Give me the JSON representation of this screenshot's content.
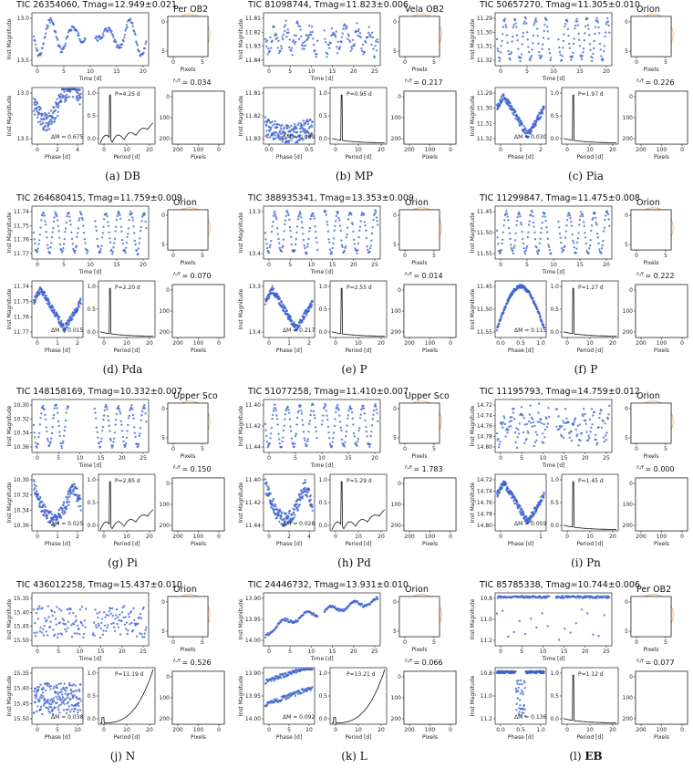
{
  "labels": {
    "ylab": "Inst Magnitude",
    "time": "Time [d]",
    "phase": "Phase [d]",
    "period": "Period [d]",
    "pixels": "Pixels",
    "dm_prefix": "ΔM = ",
    "p_prefix": "P=",
    "p_suffix": " d",
    "ratio_prefix": "= "
  },
  "chart_data": [
    {
      "id": "a",
      "tic": "TIC 26354060, Tmag=12.949±0.021",
      "assoc": "Per OB2",
      "caption": "(a) DB",
      "caption_bold": false,
      "lc": {
        "yticks": [
          "13.0",
          "13.5"
        ],
        "xticks": [
          "0",
          "5",
          "10",
          "15",
          "20"
        ],
        "xlim": [
          0,
          24
        ],
        "gap": [
          11,
          13
        ],
        "type": "db"
      },
      "ph": {
        "yticks": [
          "13.0",
          "13.5"
        ],
        "xticks": [
          "0",
          "2",
          "4"
        ],
        "xlim": [
          0,
          4.3
        ],
        "type": "db"
      },
      "period": "4.25",
      "dm": "0.675",
      "ratio": "0.034",
      "ptype": "multi",
      "pyt": [
        "1.0",
        "0.5",
        "0.0"
      ],
      "pxt": [
        "0",
        "10",
        "20"
      ],
      "pix": {
        "yt": [
          "0",
          "5"
        ],
        "xt": [
          "0",
          "5"
        ]
      },
      "sky": {
        "yt": [
          "0",
          "100",
          "200"
        ],
        "xt": [
          "200",
          "100",
          "0"
        ],
        "stars": 5
      }
    },
    {
      "id": "b",
      "tic": "TIC 81098744, Tmag=11.823±0.006",
      "assoc": "Vela OB2",
      "caption": "(b) MP",
      "caption_bold": false,
      "lc": {
        "yticks": [
          "11.81",
          "11.82",
          "11.83",
          "11.84"
        ],
        "xticks": [
          "0",
          "5",
          "10",
          "15",
          "20",
          "25"
        ],
        "xlim": [
          0,
          26
        ],
        "gap": [
          12,
          13.5
        ],
        "type": "mp"
      },
      "ph": {
        "yticks": [
          "11.81",
          "11.82",
          "11.83"
        ],
        "xticks": [
          "0.0",
          "0.5"
        ],
        "xlim": [
          0,
          0.95
        ],
        "type": "mp"
      },
      "period": "0.95",
      "dm": "0.009",
      "ratio": "0.217",
      "ptype": "peak",
      "pyt": [
        "1.0",
        "0.5",
        "0.0"
      ],
      "pxt": [
        "0",
        "10",
        "20"
      ],
      "pix": {
        "yt": [
          "0",
          "5"
        ],
        "xt": [
          "0",
          "5"
        ]
      },
      "sky": {
        "yt": [
          "0",
          "100",
          "200"
        ],
        "xt": [
          "200",
          "100",
          "0"
        ],
        "stars": 6
      }
    },
    {
      "id": "c",
      "tic": "TIC 50657270, Tmag=11.305±0.010",
      "assoc": "Orion",
      "caption": "(c) Pia",
      "caption_bold": false,
      "lc": {
        "yticks": [
          "11.29",
          "11.30",
          "11.31",
          "11.32"
        ],
        "xticks": [
          "0",
          "5",
          "10",
          "15",
          "20"
        ],
        "xlim": [
          0,
          24
        ],
        "gap": [
          11.5,
          13
        ],
        "type": "saw"
      },
      "ph": {
        "yticks": [
          "11.29",
          "11.30",
          "11.31",
          "11.32"
        ],
        "xticks": [
          "0",
          "1",
          "2"
        ],
        "xlim": [
          0,
          2
        ],
        "type": "v"
      },
      "period": "1.97",
      "dm": "0.030",
      "ratio": "0.226",
      "ptype": "peak",
      "pyt": [
        "1.0",
        "0.5",
        "0.0"
      ],
      "pxt": [
        "0",
        "10",
        "20"
      ],
      "pix": {
        "yt": [
          "0",
          "5"
        ],
        "xt": [
          "0",
          "5"
        ]
      },
      "sky": {
        "yt": [
          "0",
          "100",
          "200"
        ],
        "xt": [
          "200",
          "100",
          "0"
        ],
        "stars": 4
      }
    },
    {
      "id": "d",
      "tic": "TIC 264680415, Tmag=11.759±0.009",
      "assoc": "Orion",
      "caption": "(d) Pda",
      "caption_bold": false,
      "lc": {
        "yticks": [
          "11.74",
          "11.75",
          "11.76",
          "11.77"
        ],
        "xticks": [
          "0",
          "5",
          "10",
          "15",
          "20"
        ],
        "xlim": [
          0,
          24
        ],
        "gap": [
          11.5,
          13
        ],
        "type": "sine"
      },
      "ph": {
        "yticks": [
          "11.74",
          "11.75",
          "11.76",
          "11.77"
        ],
        "xticks": [
          "0",
          "1",
          "2"
        ],
        "xlim": [
          0,
          2.2
        ],
        "type": "v"
      },
      "period": "2.20",
      "dm": "0.015",
      "ratio": "0.070",
      "ptype": "peak",
      "pyt": [
        "1.0",
        "0.5",
        "0.0"
      ],
      "pxt": [
        "0",
        "10",
        "20"
      ],
      "pix": {
        "yt": [
          "0",
          "5"
        ],
        "xt": [
          "0",
          "5"
        ]
      },
      "sky": {
        "yt": [
          "0",
          "100",
          "200"
        ],
        "xt": [
          "200",
          "100",
          "0"
        ],
        "stars": 3
      }
    },
    {
      "id": "e",
      "tic": "TIC 388935341, Tmag=13.353±0.009",
      "assoc": "Orion",
      "caption": "(e) P",
      "caption_bold": false,
      "lc": {
        "yticks": [
          "13.3",
          "13.4"
        ],
        "xticks": [
          "0",
          "5",
          "10",
          "15",
          "20",
          "25"
        ],
        "xlim": [
          0,
          26
        ],
        "gap": [
          12,
          13.5
        ],
        "type": "sine"
      },
      "ph": {
        "yticks": [
          "13.3",
          "13.4"
        ],
        "xticks": [
          "0",
          "1",
          "2"
        ],
        "xlim": [
          0,
          2.55
        ],
        "type": "v"
      },
      "period": "2.55",
      "dm": "0.217",
      "ratio": "0.014",
      "ptype": "peak",
      "pyt": [
        "1.0",
        "0.5",
        "0.0"
      ],
      "pxt": [
        "0",
        "10",
        "20"
      ],
      "pix": {
        "yt": [
          "0",
          "5"
        ],
        "xt": [
          "0",
          "5"
        ]
      },
      "sky": {
        "yt": [
          "0",
          "100",
          "200"
        ],
        "xt": [
          "200",
          "100",
          "0"
        ],
        "stars": 3
      }
    },
    {
      "id": "f",
      "tic": "TIC 11299847, Tmag=11.475±0.008",
      "assoc": "Orion",
      "caption": "(f) P",
      "caption_bold": false,
      "lc": {
        "yticks": [
          "11.45",
          "11.50",
          "11.55"
        ],
        "xticks": [
          "0",
          "5",
          "10",
          "15",
          "20"
        ],
        "xlim": [
          0,
          24
        ],
        "gap": [
          11.5,
          13
        ],
        "type": "sine"
      },
      "ph": {
        "yticks": [
          "11.45",
          "11.50",
          "11.55"
        ],
        "xticks": [
          "0.0",
          "0.5",
          "1.0"
        ],
        "xlim": [
          0,
          1.27
        ],
        "type": "arc"
      },
      "period": "1.27",
      "dm": "0.115",
      "ratio": "0.222",
      "ptype": "peak",
      "pyt": [
        "1.0",
        "0.5",
        "0.0"
      ],
      "pxt": [
        "0",
        "10",
        "20"
      ],
      "pix": {
        "yt": [
          "0",
          "5"
        ],
        "xt": [
          "0",
          "5"
        ]
      },
      "sky": {
        "yt": [
          "0",
          "100",
          "200"
        ],
        "xt": [
          "200",
          "100",
          "0"
        ],
        "stars": 6
      }
    },
    {
      "id": "g",
      "tic": "TIC 148158169, Tmag=10.332±0.007",
      "assoc": "Upper Sco",
      "caption": "(g) Pi",
      "caption_bold": false,
      "lc": {
        "yticks": [
          "10.30",
          "10.32",
          "10.34",
          "10.36"
        ],
        "xticks": [
          "0",
          "5",
          "10",
          "15",
          "20",
          "25"
        ],
        "xlim": [
          0,
          26
        ],
        "gap": [
          8,
          14
        ],
        "type": "sine"
      },
      "ph": {
        "yticks": [
          "10.30",
          "10.32",
          "10.34",
          "10.36"
        ],
        "xticks": [
          "0",
          "1",
          "2"
        ],
        "xlim": [
          0,
          2.85
        ],
        "type": "band"
      },
      "period": "2.85",
      "dm": "0.025",
      "ratio": "0.150",
      "ptype": "multi",
      "pyt": [
        "1.0",
        "0.5",
        "0.0"
      ],
      "pxt": [
        "0",
        "10",
        "20"
      ],
      "pix": {
        "yt": [
          "0",
          "5"
        ],
        "xt": [
          "0",
          "5"
        ]
      },
      "sky": {
        "yt": [
          "0",
          "100",
          "200"
        ],
        "xt": [
          "200",
          "100",
          "0"
        ],
        "stars": 5
      }
    },
    {
      "id": "h",
      "tic": "TIC 51077258, Tmag=11.410±0.007",
      "assoc": "Upper Sco",
      "caption": "(h) Pd",
      "caption_bold": false,
      "lc": {
        "yticks": [
          "11.40",
          "11.42",
          "11.44"
        ],
        "xticks": [
          "0",
          "5",
          "10",
          "15",
          "20"
        ],
        "xlim": [
          0,
          23
        ],
        "gap": [
          10.5,
          11.5
        ],
        "type": "sine"
      },
      "ph": {
        "yticks": [
          "11.40",
          "11.42",
          "11.44"
        ],
        "xticks": [
          "0",
          "2",
          "4"
        ],
        "xlim": [
          0,
          5.3
        ],
        "type": "band"
      },
      "period": "5.29",
      "dm": "0.028",
      "ratio": "1.783",
      "ptype": "multi",
      "pyt": [
        "1.0",
        "0.5",
        "0.0"
      ],
      "pxt": [
        "0",
        "10",
        "20"
      ],
      "pix": {
        "yt": [
          "0",
          "5"
        ],
        "xt": [
          "0",
          "5"
        ]
      },
      "sky": {
        "yt": [
          "0",
          "100",
          "200"
        ],
        "xt": [
          "200",
          "100",
          "0"
        ],
        "stars": 40
      }
    },
    {
      "id": "i",
      "tic": "TIC 11195793, Tmag=14.759±0.012",
      "assoc": "Orion",
      "caption": "(i) Pn",
      "caption_bold": false,
      "lc": {
        "yticks": [
          "14.72",
          "14.74",
          "14.76",
          "14.78",
          "14.80"
        ],
        "xticks": [
          "0",
          "5",
          "10",
          "15",
          "20",
          "25"
        ],
        "xlim": [
          0,
          26
        ],
        "gap": [
          12,
          13.5
        ],
        "type": "noisy"
      },
      "ph": {
        "yticks": [
          "14.72",
          "14.74",
          "14.76",
          "14.78",
          "14.80"
        ],
        "xticks": [
          "0",
          "1"
        ],
        "xlim": [
          0,
          1.45
        ],
        "type": "v"
      },
      "period": "1.45",
      "dm": "0.059",
      "ratio": "0.000",
      "ptype": "peak",
      "pyt": [
        "1.0",
        "0.5",
        "0.0"
      ],
      "pxt": [
        "0",
        "10",
        "20"
      ],
      "pix": {
        "yt": [
          "0",
          "5"
        ],
        "xt": [
          "0",
          "5"
        ]
      },
      "sky": {
        "yt": [
          "0",
          "100",
          "200"
        ],
        "xt": [
          "200",
          "100",
          "0"
        ],
        "stars": 3
      }
    },
    {
      "id": "j",
      "tic": "TIC 436012258, Tmag=15.437±0.010",
      "assoc": "Orion",
      "caption": "(j) N",
      "caption_bold": false,
      "lc": {
        "yticks": [
          "15.35",
          "15.40",
          "15.45",
          "15.50"
        ],
        "xticks": [
          "0",
          "5",
          "10",
          "15",
          "20",
          "25"
        ],
        "xlim": [
          0,
          26
        ],
        "gap": [
          12,
          13.5
        ],
        "type": "noise"
      },
      "ph": {
        "yticks": [
          "15.35",
          "15.40",
          "15.45",
          "15.50"
        ],
        "xticks": [
          "0",
          "5",
          "10"
        ],
        "xlim": [
          0,
          11.2
        ],
        "type": "noise"
      },
      "period": "11.19",
      "dm": "0.038",
      "ratio": "0.526",
      "ptype": "rise",
      "pyt": [
        "1.0",
        "0.5",
        "0.0"
      ],
      "pxt": [
        "0",
        "10",
        "20"
      ],
      "pix": {
        "yt": [
          "0",
          "5"
        ],
        "xt": [
          "0",
          "5"
        ]
      },
      "sky": {
        "yt": [
          "0",
          "100",
          "200"
        ],
        "xt": [
          "200",
          "100",
          "0"
        ],
        "stars": 2
      }
    },
    {
      "id": "k",
      "tic": "TIC 24446732, Tmag=13.931±0.010",
      "assoc": "Orion",
      "caption": "(k) L",
      "caption_bold": false,
      "lc": {
        "yticks": [
          "13.90",
          "13.95",
          "14.00"
        ],
        "xticks": [
          "0",
          "5",
          "10",
          "15",
          "20",
          "25"
        ],
        "xlim": [
          0,
          26
        ],
        "gap": [
          12,
          13.5
        ],
        "type": "trend"
      },
      "ph": {
        "yticks": [
          "13.90",
          "13.95",
          "14.00"
        ],
        "xticks": [
          "0",
          "5",
          "10"
        ],
        "xlim": [
          0,
          13.2
        ],
        "type": "trend"
      },
      "period": "13.21",
      "dm": "0.092",
      "ratio": "0.066",
      "ptype": "rise",
      "pyt": [
        "1.0",
        "0.5",
        "0.0"
      ],
      "pxt": [
        "0",
        "10",
        "20"
      ],
      "pix": {
        "yt": [
          "0",
          "5"
        ],
        "xt": [
          "0",
          "5"
        ]
      },
      "sky": {
        "yt": [
          "0",
          "100",
          "200"
        ],
        "xt": [
          "200",
          "100",
          "0"
        ],
        "stars": 2
      }
    },
    {
      "id": "l",
      "tic": "TIC 85785338, Tmag=10.744±0.006",
      "assoc": "Per OB2",
      "caption": "(l) ",
      "caption_bold": "EB",
      "lc": {
        "yticks": [
          "10.8",
          "11.0",
          "11.2"
        ],
        "xticks": [
          "0",
          "5",
          "10",
          "15",
          "20",
          "25"
        ],
        "xlim": [
          0,
          26
        ],
        "gap": [
          12,
          13.5
        ],
        "type": "eb"
      },
      "ph": {
        "yticks": [
          "10.8",
          "11.0",
          "11.2"
        ],
        "xticks": [
          "0.0",
          "0.5",
          "1.0"
        ],
        "xlim": [
          0,
          1.12
        ],
        "type": "eb"
      },
      "period": "1.12",
      "dm": "0.136",
      "ratio": "0.077",
      "ptype": "peak",
      "pyt": [
        "1.0",
        "0.5",
        "0.0"
      ],
      "pxt": [
        "0",
        "10",
        "20"
      ],
      "pix": {
        "yt": [
          "0",
          "5"
        ],
        "xt": [
          "0",
          "5"
        ]
      },
      "sky": {
        "yt": [
          "0",
          "100",
          "200"
        ],
        "xt": [
          "200",
          "100",
          "0"
        ],
        "stars": 3
      }
    }
  ]
}
